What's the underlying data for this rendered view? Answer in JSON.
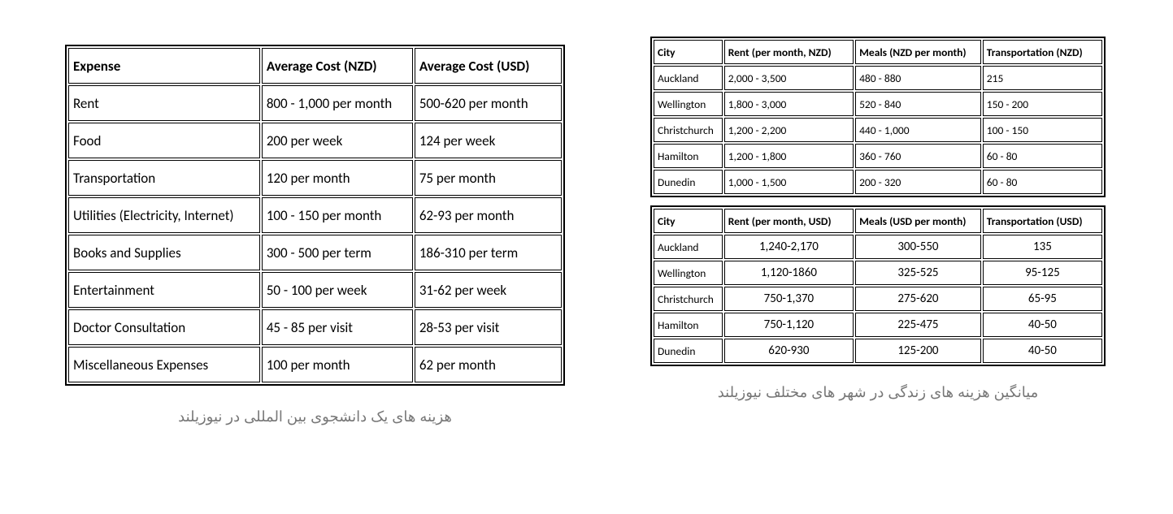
{
  "left_table": {
    "headers": [
      "Expense",
      "Average Cost (NZD)",
      "Average Cost (USD)"
    ],
    "rows": [
      [
        "Rent",
        "800 - 1,000 per month",
        "500-620 per month"
      ],
      [
        "Food",
        "200 per week",
        "124 per week"
      ],
      [
        "Transportation",
        "120 per month",
        "75 per month"
      ],
      [
        "Utilities (Electricity, Internet)",
        "100 - 150 per month",
        "62-93  per month"
      ],
      [
        "Books and Supplies",
        "300 - 500 per term",
        "186-310 per term"
      ],
      [
        "Entertainment",
        "50 - 100 per week",
        "31-62 per week"
      ],
      [
        "Doctor Consultation",
        "45 - 85 per visit",
        "28-53 per visit"
      ],
      [
        "Miscellaneous Expenses",
        "100 per month",
        "62 per month"
      ]
    ],
    "caption": "هزینه های یک دانشجوی بین المللی در نیوزیلند"
  },
  "right_nzd": {
    "headers": [
      "City",
      "Rent (per month, NZD)",
      "Meals (NZD per month)",
      "Transportation (NZD)"
    ],
    "rows": [
      [
        "Auckland",
        "2,000 - 3,500",
        "480 - 880",
        "215"
      ],
      [
        "Wellington",
        "1,800 - 3,000",
        "520 - 840",
        "150 - 200"
      ],
      [
        "Christchurch",
        "1,200 - 2,200",
        "440 - 1,000",
        "100 - 150"
      ],
      [
        "Hamilton",
        "1,200 - 1,800",
        "360 - 760",
        "60 - 80"
      ],
      [
        "Dunedin",
        "1,000 - 1,500",
        "200 - 320",
        "60 - 80"
      ]
    ]
  },
  "right_usd": {
    "headers": [
      "City",
      "Rent (per month, USD)",
      "Meals (USD per month)",
      "Transportation (USD)"
    ],
    "rows": [
      [
        "Auckland",
        "1,240-2,170",
        "300-550",
        "135"
      ],
      [
        "Wellington",
        "1,120-1860",
        "325-525",
        "95-125"
      ],
      [
        "Christchurch",
        "750-1,370",
        "275-620",
        "65-95"
      ],
      [
        "Hamilton",
        "750-1,120",
        "225-475",
        "40-50"
      ],
      [
        "Dunedin",
        "620-930",
        "125-200",
        "40-50"
      ]
    ],
    "caption": "میانگین هزینه های زندگی در شهر های مختلف نیوزیلند"
  }
}
